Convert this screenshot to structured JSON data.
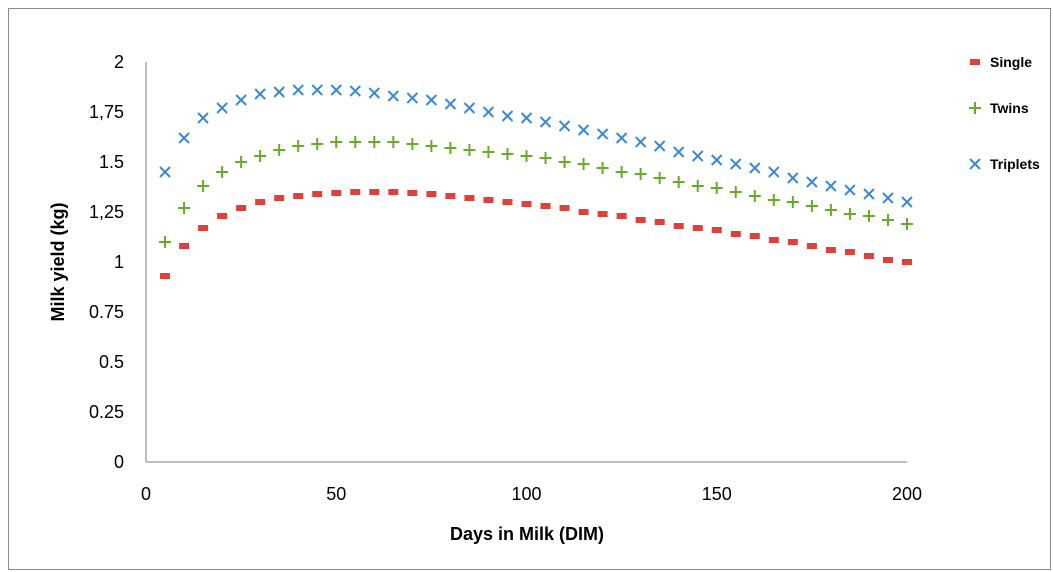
{
  "chart_data": {
    "type": "scatter",
    "xlabel": "Days in Milk (DIM)",
    "ylabel": "Milk yield (kg)",
    "xlim": [
      0,
      200
    ],
    "ylim": [
      0,
      2
    ],
    "xticks": [
      0,
      50,
      100,
      150,
      200
    ],
    "xtick_labels": [
      "0",
      "50",
      "100",
      "150",
      "200"
    ],
    "yticks": [
      0,
      0.25,
      0.5,
      0.75,
      1,
      1.25,
      1.5,
      1.75,
      2
    ],
    "ytick_labels": [
      "0",
      "0.25",
      "0.5",
      "0.75",
      "1",
      "1,25",
      "1.5",
      "1,75",
      "2"
    ],
    "grid": false,
    "legend_position": "right",
    "series": [
      {
        "name": "Single",
        "marker": "dash",
        "color": "#e0403a",
        "x": [
          5,
          10,
          15,
          20,
          25,
          30,
          35,
          40,
          45,
          50,
          55,
          60,
          65,
          70,
          75,
          80,
          85,
          90,
          95,
          100,
          105,
          110,
          115,
          120,
          125,
          130,
          135,
          140,
          145,
          150,
          155,
          160,
          165,
          170,
          175,
          180,
          185,
          190,
          195,
          200
        ],
        "y": [
          0.93,
          1.08,
          1.17,
          1.23,
          1.27,
          1.3,
          1.32,
          1.33,
          1.34,
          1.345,
          1.35,
          1.35,
          1.35,
          1.345,
          1.34,
          1.33,
          1.32,
          1.31,
          1.3,
          1.29,
          1.28,
          1.27,
          1.25,
          1.24,
          1.23,
          1.21,
          1.2,
          1.18,
          1.17,
          1.16,
          1.14,
          1.13,
          1.11,
          1.1,
          1.08,
          1.06,
          1.05,
          1.03,
          1.01,
          1.0
        ]
      },
      {
        "name": "Twins",
        "marker": "plus",
        "color": "#6aaa2a",
        "x": [
          5,
          10,
          15,
          20,
          25,
          30,
          35,
          40,
          45,
          50,
          55,
          60,
          65,
          70,
          75,
          80,
          85,
          90,
          95,
          100,
          105,
          110,
          115,
          120,
          125,
          130,
          135,
          140,
          145,
          150,
          155,
          160,
          165,
          170,
          175,
          180,
          185,
          190,
          195,
          200
        ],
        "y": [
          1.1,
          1.27,
          1.38,
          1.45,
          1.5,
          1.53,
          1.56,
          1.58,
          1.59,
          1.6,
          1.6,
          1.6,
          1.6,
          1.59,
          1.58,
          1.57,
          1.56,
          1.55,
          1.54,
          1.53,
          1.52,
          1.5,
          1.49,
          1.47,
          1.45,
          1.44,
          1.42,
          1.4,
          1.38,
          1.37,
          1.35,
          1.33,
          1.31,
          1.3,
          1.28,
          1.26,
          1.24,
          1.23,
          1.21,
          1.19
        ]
      },
      {
        "name": "Triplets",
        "marker": "x",
        "color": "#3a8ad0",
        "x": [
          5,
          10,
          15,
          20,
          25,
          30,
          35,
          40,
          45,
          50,
          55,
          60,
          65,
          70,
          75,
          80,
          85,
          90,
          95,
          100,
          105,
          110,
          115,
          120,
          125,
          130,
          135,
          140,
          145,
          150,
          155,
          160,
          165,
          170,
          175,
          180,
          185,
          190,
          195,
          200
        ],
        "y": [
          1.45,
          1.62,
          1.72,
          1.77,
          1.81,
          1.84,
          1.85,
          1.86,
          1.86,
          1.86,
          1.855,
          1.845,
          1.83,
          1.82,
          1.81,
          1.79,
          1.77,
          1.75,
          1.73,
          1.72,
          1.7,
          1.68,
          1.66,
          1.64,
          1.62,
          1.6,
          1.58,
          1.55,
          1.53,
          1.51,
          1.49,
          1.47,
          1.45,
          1.42,
          1.4,
          1.38,
          1.36,
          1.34,
          1.32,
          1.3
        ]
      }
    ]
  }
}
